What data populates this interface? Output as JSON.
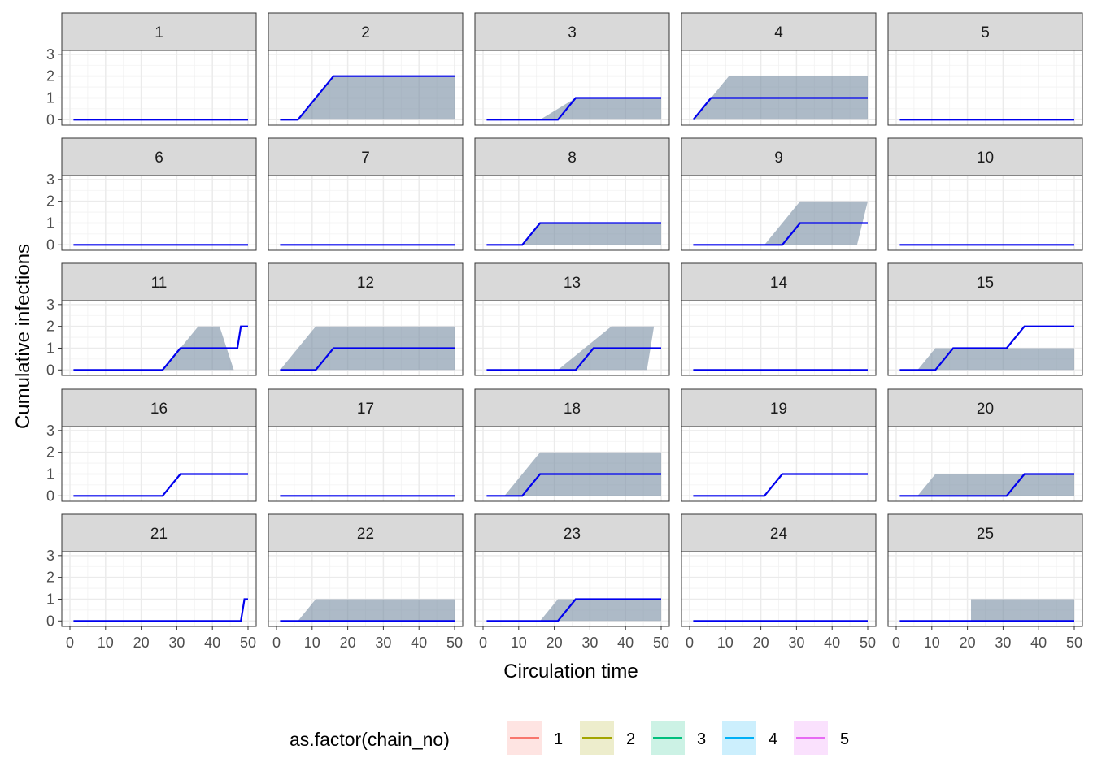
{
  "chart_data": {
    "type": "line",
    "layout": "facet_wrap",
    "xlabel": "Circulation time",
    "ylabel": "Cumulative infections",
    "xlim": [
      0,
      50
    ],
    "ylim": [
      0,
      3
    ],
    "x_ticks": [
      0,
      10,
      20,
      30,
      40,
      50
    ],
    "y_ticks": [
      0,
      1,
      2,
      3
    ],
    "grid": true,
    "theme": "bw",
    "legend": {
      "title": "as.factor(chain_no)",
      "position": "bottom",
      "entries": [
        {
          "label": "1",
          "color": "#F8766D"
        },
        {
          "label": "2",
          "color": "#A3A500"
        },
        {
          "label": "3",
          "color": "#00BF7D"
        },
        {
          "label": "4",
          "color": "#00B0F6"
        },
        {
          "label": "5",
          "color": "#E76BF3"
        }
      ]
    },
    "overlay_color": "#0000EE",
    "band_color": "#7A90A4",
    "panels": [
      {
        "label": "1",
        "band": null,
        "line": [
          [
            1,
            0
          ],
          [
            50,
            0
          ]
        ]
      },
      {
        "label": "2",
        "band": [
          [
            6,
            0
          ],
          [
            16,
            2
          ],
          [
            50,
            2
          ],
          [
            50,
            0
          ]
        ],
        "line": [
          [
            1,
            0
          ],
          [
            6,
            0
          ],
          [
            16,
            2
          ],
          [
            50,
            2
          ]
        ]
      },
      {
        "label": "3",
        "band": [
          [
            16,
            0
          ],
          [
            26,
            1
          ],
          [
            50,
            1
          ],
          [
            50,
            0
          ]
        ],
        "line": [
          [
            1,
            0
          ],
          [
            21,
            0
          ],
          [
            26,
            1
          ],
          [
            50,
            1
          ]
        ]
      },
      {
        "label": "4",
        "band": [
          [
            1,
            0
          ],
          [
            11,
            2
          ],
          [
            50,
            2
          ],
          [
            50,
            0
          ]
        ],
        "line": [
          [
            1,
            0
          ],
          [
            6,
            1
          ],
          [
            50,
            1
          ]
        ]
      },
      {
        "label": "5",
        "band": null,
        "line": [
          [
            1,
            0
          ],
          [
            50,
            0
          ]
        ]
      },
      {
        "label": "6",
        "band": null,
        "line": [
          [
            1,
            0
          ],
          [
            50,
            0
          ]
        ]
      },
      {
        "label": "7",
        "band": null,
        "line": [
          [
            1,
            0
          ],
          [
            50,
            0
          ]
        ]
      },
      {
        "label": "8",
        "band": [
          [
            11,
            0
          ],
          [
            16,
            1
          ],
          [
            50,
            1
          ],
          [
            50,
            0
          ]
        ],
        "line": [
          [
            1,
            0
          ],
          [
            11,
            0
          ],
          [
            16,
            1
          ],
          [
            50,
            1
          ]
        ]
      },
      {
        "label": "9",
        "band": [
          [
            21,
            0
          ],
          [
            26,
            1
          ],
          [
            31,
            2
          ],
          [
            50,
            2
          ],
          [
            47,
            0
          ]
        ],
        "line": [
          [
            1,
            0
          ],
          [
            26,
            0
          ],
          [
            31,
            1
          ],
          [
            50,
            1
          ]
        ]
      },
      {
        "label": "10",
        "band": null,
        "line": [
          [
            1,
            0
          ],
          [
            50,
            0
          ]
        ]
      },
      {
        "label": "11",
        "band": [
          [
            26,
            0
          ],
          [
            36,
            2
          ],
          [
            42,
            2
          ],
          [
            46,
            0
          ]
        ],
        "line": [
          [
            1,
            0
          ],
          [
            26,
            0
          ],
          [
            31,
            1
          ],
          [
            47,
            1
          ],
          [
            48,
            2
          ],
          [
            50,
            2
          ]
        ]
      },
      {
        "label": "12",
        "band": [
          [
            1,
            0
          ],
          [
            11,
            2
          ],
          [
            50,
            2
          ],
          [
            50,
            0
          ]
        ],
        "line": [
          [
            1,
            0
          ],
          [
            11,
            0
          ],
          [
            16,
            1
          ],
          [
            50,
            1
          ]
        ]
      },
      {
        "label": "13",
        "band": [
          [
            21,
            0
          ],
          [
            36,
            2
          ],
          [
            48,
            2
          ],
          [
            46,
            0
          ]
        ],
        "line": [
          [
            1,
            0
          ],
          [
            26,
            0
          ],
          [
            31,
            1
          ],
          [
            50,
            1
          ]
        ]
      },
      {
        "label": "14",
        "band": null,
        "line": [
          [
            1,
            0
          ],
          [
            50,
            0
          ]
        ]
      },
      {
        "label": "15",
        "band": [
          [
            6,
            0
          ],
          [
            11,
            1
          ],
          [
            26,
            1
          ],
          [
            50,
            1
          ],
          [
            50,
            0
          ]
        ],
        "line": [
          [
            1,
            0
          ],
          [
            11,
            0
          ],
          [
            16,
            1
          ],
          [
            31,
            1
          ],
          [
            36,
            2
          ],
          [
            50,
            2
          ]
        ]
      },
      {
        "label": "16",
        "band": null,
        "line": [
          [
            1,
            0
          ],
          [
            26,
            0
          ],
          [
            31,
            1
          ],
          [
            50,
            1
          ]
        ]
      },
      {
        "label": "17",
        "band": null,
        "line": [
          [
            1,
            0
          ],
          [
            50,
            0
          ]
        ]
      },
      {
        "label": "18",
        "band": [
          [
            6,
            0
          ],
          [
            16,
            2
          ],
          [
            50,
            2
          ],
          [
            50,
            0
          ]
        ],
        "line": [
          [
            1,
            0
          ],
          [
            11,
            0
          ],
          [
            16,
            1
          ],
          [
            50,
            1
          ]
        ]
      },
      {
        "label": "19",
        "band": null,
        "line": [
          [
            1,
            0
          ],
          [
            21,
            0
          ],
          [
            26,
            1
          ],
          [
            50,
            1
          ]
        ]
      },
      {
        "label": "20",
        "band": [
          [
            6,
            0
          ],
          [
            11,
            1
          ],
          [
            50,
            1
          ],
          [
            50,
            0
          ]
        ],
        "line": [
          [
            1,
            0
          ],
          [
            31,
            0
          ],
          [
            36,
            1
          ],
          [
            50,
            1
          ]
        ]
      },
      {
        "label": "21",
        "band": null,
        "line": [
          [
            1,
            0
          ],
          [
            48,
            0
          ],
          [
            49,
            1
          ],
          [
            50,
            1
          ]
        ]
      },
      {
        "label": "22",
        "band": [
          [
            6,
            0
          ],
          [
            11,
            1
          ],
          [
            50,
            1
          ],
          [
            50,
            0
          ]
        ],
        "line": [
          [
            1,
            0
          ],
          [
            50,
            0
          ]
        ]
      },
      {
        "label": "23",
        "band": [
          [
            16,
            0
          ],
          [
            21,
            1
          ],
          [
            50,
            1
          ],
          [
            50,
            0
          ]
        ],
        "line": [
          [
            1,
            0
          ],
          [
            21,
            0
          ],
          [
            26,
            1
          ],
          [
            50,
            1
          ]
        ]
      },
      {
        "label": "24",
        "band": null,
        "line": [
          [
            1,
            0
          ],
          [
            50,
            0
          ]
        ]
      },
      {
        "label": "25",
        "band": [
          [
            21,
            0
          ],
          [
            21,
            1
          ],
          [
            50,
            1
          ],
          [
            50,
            0
          ]
        ],
        "line": [
          [
            1,
            0
          ],
          [
            50,
            0
          ]
        ]
      }
    ]
  }
}
